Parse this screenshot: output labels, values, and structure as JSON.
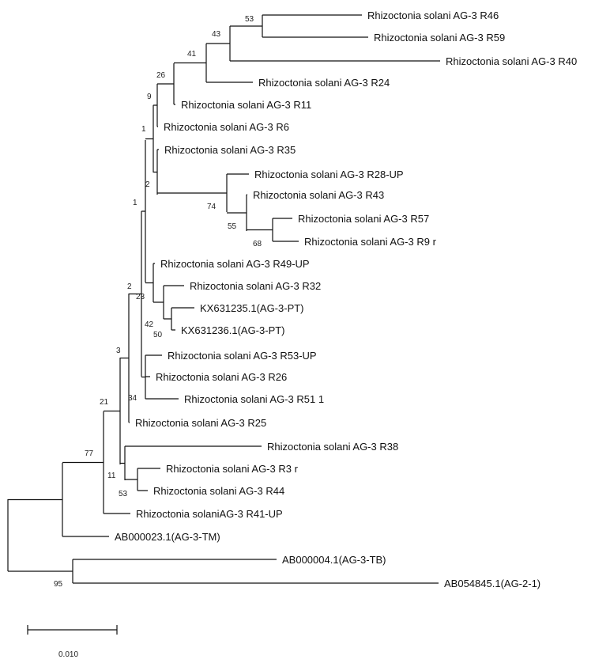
{
  "tree": {
    "leaves": [
      "Rhizoctonia solani AG-3 R46",
      "Rhizoctonia solani AG-3 R59",
      "Rhizoctonia solani AG-3 R40",
      "Rhizoctonia solani AG-3 R24",
      "Rhizoctonia solani AG-3 R11",
      "Rhizoctonia solani AG-3 R6",
      "Rhizoctonia solani AG-3 R35",
      "Rhizoctonia solani AG-3 R28-UP",
      "Rhizoctonia solani AG-3 R43",
      "Rhizoctonia solani AG-3 R57",
      "Rhizoctonia solani AG-3 R9 r",
      "Rhizoctonia solani AG-3 R49-UP",
      "Rhizoctonia solani AG-3 R32",
      "KX631235.1(AG-3-PT)",
      "KX631236.1(AG-3-PT)",
      "Rhizoctonia solani AG-3 R53-UP",
      "Rhizoctonia solani AG-3 R26",
      "Rhizoctonia solani AG-3 R51 1",
      "Rhizoctonia solani AG-3 R25",
      "Rhizoctonia solani AG-3 R38",
      "Rhizoctonia solani AG-3 R3 r",
      "Rhizoctonia solani AG-3 R44",
      "Rhizoctonia solaniAG-3 R41-UP",
      "AB000023.1(AG-3-TM)",
      "AB000004.1(AG-3-TB)",
      "AB054845.1(AG-2-1)"
    ],
    "bootstrap": [
      "53",
      "43",
      "41",
      "26",
      "9",
      "1",
      "2",
      "74",
      "55",
      "68",
      "1",
      "2",
      "23",
      "42",
      "50",
      "3",
      "34",
      "21",
      "77",
      "11",
      "53",
      "95"
    ],
    "scale_bar_label": "0.010"
  }
}
